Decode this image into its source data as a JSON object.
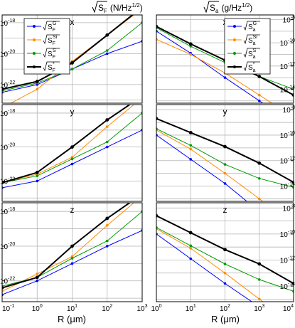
{
  "figure": {
    "col_titles": {
      "left": {
        "main": "S",
        "sub": "F",
        "units": "(N/Hz",
        "exp": "1/2",
        "close": ")"
      },
      "right": {
        "main": "S",
        "sub": "a",
        "units": "(g/Hz",
        "exp": "1/2",
        "close": ")"
      }
    },
    "xlabels": {
      "left": "R (μm)",
      "right": "R (μm)"
    }
  },
  "colors": {
    "blue": "#0000ff",
    "orange": "#ff8c00",
    "green": "#009900",
    "black": "#000000",
    "grid": "#b4b4b4"
  },
  "legend": {
    "left": [
      {
        "color": "blue",
        "main": "S",
        "sub": "F",
        "sup": "G"
      },
      {
        "color": "orange",
        "main": "S",
        "sub": "F",
        "sup": "Si"
      },
      {
        "color": "green",
        "main": "S",
        "sub": "F",
        "sup": "S"
      },
      {
        "color": "black",
        "main": "S",
        "sub": "F",
        "sup": "*"
      }
    ],
    "right": [
      {
        "color": "blue",
        "main": "S",
        "sub": "a",
        "sup": "G"
      },
      {
        "color": "orange",
        "main": "S",
        "sub": "a",
        "sup": "Si"
      },
      {
        "color": "green",
        "main": "S",
        "sub": "a",
        "sup": "S"
      },
      {
        "color": "black",
        "main": "S",
        "sub": "a",
        "sup": "*"
      }
    ]
  },
  "chart_data": [
    {
      "type": "line",
      "panel": "force-x",
      "title": "x",
      "log_x": true,
      "log_y": true,
      "xlim": [
        0.1,
        1000
      ],
      "ylim_log10": [
        -23.2,
        -17.5
      ],
      "x_ticks": [
        "10",
        "10",
        "10",
        "10",
        "10"
      ],
      "x_tick_exps": [
        "-1",
        "0",
        "1",
        "2",
        "3"
      ],
      "show_x_ticks": false,
      "y_ticks": [
        "10",
        "10",
        "10"
      ],
      "y_tick_exps": [
        "-22",
        "-20",
        "-18"
      ],
      "y_tick_values": [
        -22,
        -20,
        -18
      ],
      "x": [
        0.1,
        1,
        10,
        100,
        1000
      ],
      "series": [
        {
          "color": "blue",
          "log10_y": [
            -22.5,
            -22.0,
            -21.0,
            -20.0,
            -19.2
          ]
        },
        {
          "color": "orange",
          "log10_y": [
            -23.5,
            -22.3,
            -20.5,
            -18.8,
            -17.1
          ]
        },
        {
          "color": "green",
          "log10_y": [
            -22.4,
            -21.9,
            -21.0,
            -19.8,
            -18.0
          ]
        },
        {
          "color": "black",
          "log10_y": [
            -22.3,
            -21.8,
            -20.6,
            -18.8,
            -17.0
          ]
        }
      ]
    },
    {
      "type": "line",
      "panel": "accel-x",
      "title": "x",
      "log_x": true,
      "log_y": true,
      "xlim": [
        1,
        10000
      ],
      "ylim_log10": [
        -15.2,
        -7.6
      ],
      "x_ticks": [
        "10",
        "10",
        "10",
        "10",
        "10"
      ],
      "x_tick_exps": [
        "0",
        "1",
        "2",
        "3",
        "4"
      ],
      "show_x_ticks": false,
      "y_ticks": [
        "10",
        "10",
        "10",
        "10"
      ],
      "y_tick_exps": [
        "-8",
        "-10",
        "-12",
        "-14"
      ],
      "y_tick_values": [
        -8,
        -10,
        -12,
        -14
      ],
      "x": [
        1,
        10,
        100,
        1000,
        10000
      ],
      "series": [
        {
          "color": "blue",
          "log10_y": [
            -9.0,
            -10.9,
            -13.0,
            -15.0,
            -17.0
          ]
        },
        {
          "color": "orange",
          "log10_y": [
            -9.7,
            -11.0,
            -12.6,
            -14.5,
            -16.4
          ]
        },
        {
          "color": "green",
          "log10_y": [
            -8.7,
            -10.3,
            -11.7,
            -12.9,
            -14.0
          ]
        },
        {
          "color": "black",
          "log10_y": [
            -8.6,
            -10.1,
            -11.5,
            -12.9,
            -14.5
          ]
        }
      ]
    },
    {
      "type": "line",
      "panel": "force-y",
      "title": "y",
      "log_x": true,
      "log_y": true,
      "xlim": [
        0.1,
        1000
      ],
      "ylim_log10": [
        -23.2,
        -17.5
      ],
      "x_ticks": [
        "10",
        "10",
        "10",
        "10",
        "10"
      ],
      "x_tick_exps": [
        "-1",
        "0",
        "1",
        "2",
        "3"
      ],
      "show_x_ticks": false,
      "y_ticks": [
        "10",
        "10",
        "10"
      ],
      "y_tick_exps": [
        "-22",
        "-20",
        "-18"
      ],
      "y_tick_values": [
        -22,
        -20,
        -18
      ],
      "x": [
        0.1,
        1,
        10,
        100,
        1000
      ],
      "series": [
        {
          "color": "blue",
          "log10_y": [
            -22.4,
            -22.0,
            -21.0,
            -20.0,
            -19.0
          ]
        },
        {
          "color": "orange",
          "log10_y": [
            -22.1,
            -21.6,
            -20.6,
            -18.8,
            -17.1
          ]
        },
        {
          "color": "green",
          "log10_y": [
            -22.1,
            -21.7,
            -20.7,
            -19.7,
            -18.0
          ]
        },
        {
          "color": "black",
          "log10_y": [
            -22.1,
            -21.5,
            -20.0,
            -18.4,
            -17.0
          ]
        }
      ]
    },
    {
      "type": "line",
      "panel": "accel-y",
      "title": "y",
      "log_x": true,
      "log_y": true,
      "xlim": [
        1,
        10000
      ],
      "ylim_log10": [
        -15.2,
        -7.6
      ],
      "x_ticks": [
        "10",
        "10",
        "10",
        "10",
        "10"
      ],
      "x_tick_exps": [
        "0",
        "1",
        "2",
        "3",
        "4"
      ],
      "show_x_ticks": false,
      "y_ticks": [
        "10",
        "10",
        "10",
        "10"
      ],
      "y_tick_exps": [
        "-8",
        "-10",
        "-12",
        "-14"
      ],
      "y_tick_values": [
        -8,
        -10,
        -12,
        -14
      ],
      "x": [
        1,
        10,
        100,
        1000,
        10000
      ],
      "series": [
        {
          "color": "blue",
          "log10_y": [
            -10.0,
            -11.9,
            -13.8,
            -16.0,
            -18.0
          ]
        },
        {
          "color": "orange",
          "log10_y": [
            -9.6,
            -11.1,
            -13.0,
            -15.0,
            -17.0
          ]
        },
        {
          "color": "green",
          "log10_y": [
            -9.5,
            -10.8,
            -12.3,
            -13.4,
            -14.1
          ]
        },
        {
          "color": "black",
          "log10_y": [
            -8.7,
            -9.8,
            -10.9,
            -12.2,
            -13.7
          ]
        }
      ]
    },
    {
      "type": "line",
      "panel": "force-z",
      "title": "z",
      "log_x": true,
      "log_y": true,
      "xlim": [
        0.1,
        1000
      ],
      "ylim_log10": [
        -23.2,
        -17.5
      ],
      "x_ticks": [
        "10",
        "10",
        "10",
        "10",
        "10"
      ],
      "x_tick_exps": [
        "-1",
        "0",
        "1",
        "2",
        "3"
      ],
      "show_x_ticks": true,
      "y_ticks": [
        "10",
        "10",
        "10"
      ],
      "y_tick_exps": [
        "-22",
        "-20",
        "-18"
      ],
      "y_tick_values": [
        -22,
        -20,
        -18
      ],
      "x": [
        0.1,
        1,
        10,
        100,
        1000
      ],
      "series": [
        {
          "color": "blue",
          "log10_y": [
            -22.8,
            -22.0,
            -21.0,
            -20.0,
            -19.1
          ]
        },
        {
          "color": "orange",
          "log10_y": [
            -22.6,
            -21.6,
            -20.6,
            -18.8,
            -17.1
          ]
        },
        {
          "color": "green",
          "log10_y": [
            -22.3,
            -21.8,
            -20.7,
            -19.7,
            -18.0
          ]
        },
        {
          "color": "black",
          "log10_y": [
            -22.4,
            -21.8,
            -20.0,
            -18.4,
            -17.0
          ]
        }
      ]
    },
    {
      "type": "line",
      "panel": "accel-z",
      "title": "z",
      "log_x": true,
      "log_y": true,
      "xlim": [
        1,
        10000
      ],
      "ylim_log10": [
        -15.2,
        -7.6
      ],
      "x_ticks": [
        "10",
        "10",
        "10",
        "10",
        "10"
      ],
      "x_tick_exps": [
        "0",
        "1",
        "2",
        "3",
        "4"
      ],
      "show_x_ticks": true,
      "y_ticks": [
        "10",
        "10",
        "10",
        "10"
      ],
      "y_tick_exps": [
        "-8",
        "-10",
        "-12",
        "-14"
      ],
      "y_tick_values": [
        -8,
        -10,
        -12,
        -14
      ],
      "x": [
        1,
        10,
        100,
        1000,
        10000
      ],
      "series": [
        {
          "color": "blue",
          "log10_y": [
            -10.0,
            -11.9,
            -13.8,
            -15.6,
            -17.5
          ]
        },
        {
          "color": "orange",
          "log10_y": [
            -9.6,
            -11.1,
            -13.0,
            -15.0,
            -17.0
          ]
        },
        {
          "color": "green",
          "log10_y": [
            -9.5,
            -10.9,
            -12.3,
            -13.5,
            -14.4
          ]
        },
        {
          "color": "black",
          "log10_y": [
            -8.6,
            -9.9,
            -11.2,
            -12.3,
            -13.8
          ]
        }
      ]
    }
  ]
}
